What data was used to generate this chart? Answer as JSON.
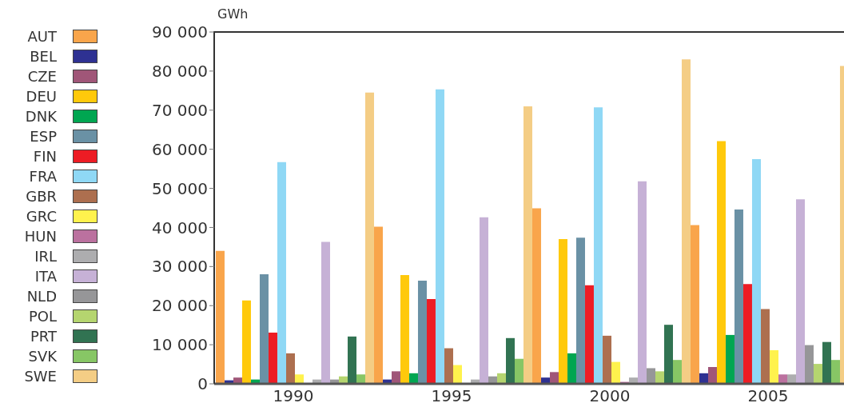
{
  "chart_data": {
    "type": "bar",
    "ylabel": "GWh",
    "categories": [
      "1990",
      "1995",
      "2000",
      "2005"
    ],
    "ylim": [
      0,
      90000
    ],
    "yticks": [
      0,
      {
        "value": 10000,
        "label": "10 000"
      },
      {
        "value": 20000,
        "label": "20 000"
      },
      {
        "value": 30000,
        "label": "30 000"
      },
      {
        "value": 40000,
        "label": "40 000"
      },
      {
        "value": 50000,
        "label": "50 000"
      },
      {
        "value": 60000,
        "label": "60 000"
      },
      {
        "value": 70000,
        "label": "70 000"
      },
      {
        "value": 80000,
        "label": "80 000"
      },
      {
        "value": 90000,
        "label": "90 000"
      }
    ],
    "legend": "left",
    "series": [
      {
        "name": "AUT",
        "color": "#f9a54b",
        "values": [
          34000,
          40200,
          44900,
          40600
        ]
      },
      {
        "name": "BEL",
        "color": "#2e3192",
        "values": [
          900,
          1100,
          1600,
          2700
        ]
      },
      {
        "name": "CZE",
        "color": "#a05678",
        "values": [
          1600,
          3200,
          3000,
          4300
        ]
      },
      {
        "name": "DEU",
        "color": "#ffc90b",
        "values": [
          21300,
          27800,
          37000,
          62100
        ]
      },
      {
        "name": "DNK",
        "color": "#00a651",
        "values": [
          1100,
          2700,
          7800,
          12500
        ]
      },
      {
        "name": "ESP",
        "color": "#6a91a5",
        "values": [
          28000,
          26400,
          37400,
          44600
        ]
      },
      {
        "name": "FIN",
        "color": "#ed1c24",
        "values": [
          13100,
          21700,
          25200,
          25500
        ]
      },
      {
        "name": "FRA",
        "color": "#8fd8f5",
        "values": [
          56700,
          75300,
          70700,
          57500
        ]
      },
      {
        "name": "GBR",
        "color": "#ad6f4f",
        "values": [
          7800,
          9100,
          12300,
          19100
        ]
      },
      {
        "name": "GRC",
        "color": "#fff24d",
        "values": [
          2400,
          4800,
          5600,
          8600
        ]
      },
      {
        "name": "HUN",
        "color": "#bb719f",
        "values": [
          0,
          0,
          500,
          2400
        ]
      },
      {
        "name": "IRL",
        "color": "#adadaf",
        "values": [
          1100,
          1100,
          1600,
          2400
        ]
      },
      {
        "name": "ITA",
        "color": "#c6b1d6",
        "values": [
          36300,
          42600,
          51800,
          47200
        ]
      },
      {
        "name": "NLD",
        "color": "#969698",
        "values": [
          1100,
          1900,
          4000,
          9900
        ]
      },
      {
        "name": "POL",
        "color": "#b5d56f",
        "values": [
          1900,
          2700,
          3200,
          5100
        ]
      },
      {
        "name": "PRT",
        "color": "#317352",
        "values": [
          12100,
          11700,
          15100,
          10700
        ]
      },
      {
        "name": "SVK",
        "color": "#87c665",
        "values": [
          2400,
          6400,
          6100,
          6100
        ]
      },
      {
        "name": "SWE",
        "color": "#f4cd85",
        "values": [
          74500,
          71000,
          83000,
          81300
        ]
      }
    ]
  }
}
